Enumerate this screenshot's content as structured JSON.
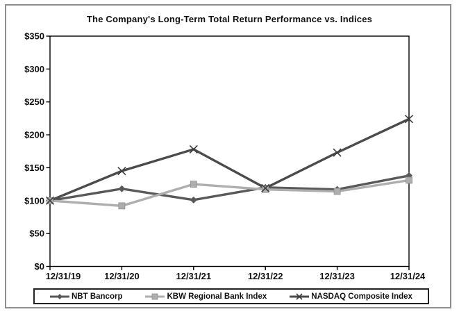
{
  "title": "The Company's Long-Term Total Return Performance vs. Indices",
  "chart_data": {
    "type": "line",
    "title": "The Company's Long-Term Total Return Performance vs. Indices",
    "x": [
      "12/31/19",
      "12/31/20",
      "12/31/21",
      "12/31/22",
      "12/31/23",
      "12/31/24"
    ],
    "series": [
      {
        "name": "NBT Bancorp",
        "marker": "diamond",
        "color": "#595959",
        "values": [
          100,
          118,
          101,
          120,
          117,
          138
        ]
      },
      {
        "name": "KBW Regional Bank Index",
        "marker": "square",
        "color": "#aeaeae",
        "values": [
          100,
          92,
          125,
          117,
          114,
          131
        ]
      },
      {
        "name": "NASDAQ Composite Index",
        "marker": "x",
        "color": "#4b4b4b",
        "values": [
          100,
          145,
          178,
          119,
          173,
          224
        ]
      }
    ],
    "ylim": [
      0,
      350
    ],
    "y_tick_step": 50,
    "y_tick_labels": [
      "$0",
      "$50",
      "$100",
      "$150",
      "$200",
      "$250",
      "$300",
      "$350"
    ],
    "xlabel": "",
    "ylabel": "",
    "grid": false,
    "legend_position": "bottom-box"
  }
}
